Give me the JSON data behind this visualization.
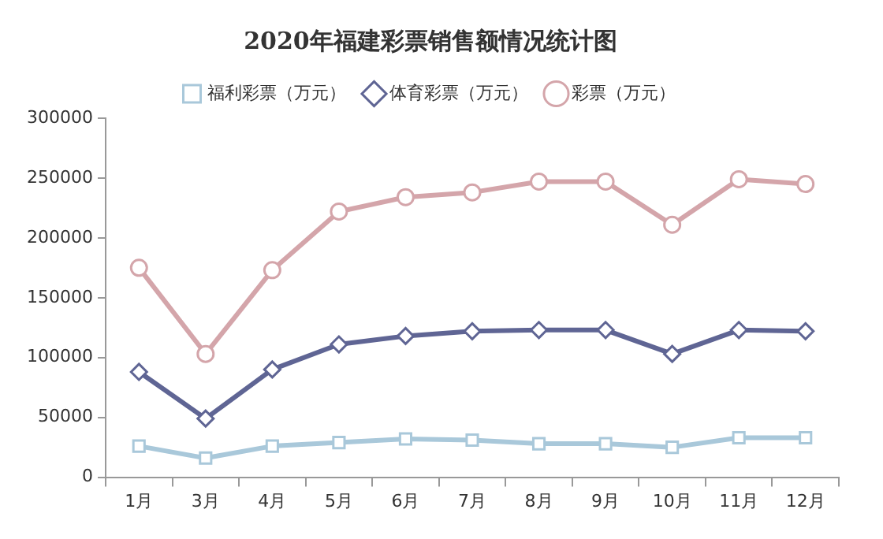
{
  "chart_data": {
    "type": "line",
    "title": "2020年福建彩票销售额情况统计图",
    "categories": [
      "1月",
      "3月",
      "4月",
      "5月",
      "6月",
      "7月",
      "8月",
      "9月",
      "10月",
      "11月",
      "12月"
    ],
    "series": [
      {
        "name": "福利彩票（万元）",
        "color": "#a9c8da",
        "marker": "square",
        "values": [
          26000,
          16000,
          26000,
          29000,
          32000,
          31000,
          28000,
          28000,
          25000,
          33000,
          33000
        ]
      },
      {
        "name": "体育彩票（万元）",
        "color": "#5f6594",
        "marker": "diamond",
        "values": [
          88000,
          49000,
          90000,
          111000,
          118000,
          122000,
          123000,
          123000,
          103000,
          123000,
          122000
        ]
      },
      {
        "name": "彩票（万元）",
        "color": "#d4a5aa",
        "marker": "circle",
        "values": [
          175000,
          103000,
          173000,
          222000,
          234000,
          238000,
          247000,
          247000,
          211000,
          249000,
          245000
        ]
      }
    ],
    "ylim": [
      0,
      300000
    ],
    "yticks": [
      0,
      50000,
      100000,
      150000,
      200000,
      250000,
      300000
    ],
    "grid": false,
    "legend": "top"
  }
}
